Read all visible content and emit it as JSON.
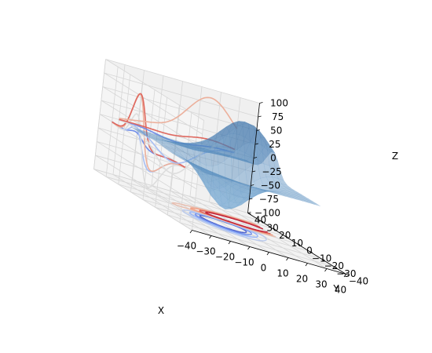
{
  "chart_data": {
    "type": "surface3d",
    "title": "",
    "xlabel": "X",
    "ylabel": "Y",
    "zlabel": "Z",
    "xlim": [
      -40,
      40
    ],
    "ylim": [
      -40,
      40
    ],
    "zlim": [
      -100,
      100
    ],
    "xticks": [
      "−40",
      "−30",
      "−20",
      "−10",
      "0",
      "10",
      "20",
      "30",
      "40"
    ],
    "yticks": [
      "−40",
      "−30",
      "−20",
      "−10",
      "0",
      "10",
      "20",
      "30",
      "40"
    ],
    "zticks": [
      "−100",
      "−75",
      "−50",
      "−25",
      "0",
      "25",
      "50",
      "75",
      "100"
    ],
    "surface": {
      "function": "axes3d test data (two Gaussian bumps: peak near x=-10,y=-10 and trough near x=10,y=15)",
      "grid_min": -30,
      "grid_max": 30,
      "grid_step": 3,
      "color": "#5b8fbf",
      "alpha": 0.45
    },
    "projections": [
      {
        "name": "contours on z = -100 plane (zdir=z)",
        "offset": -100
      },
      {
        "name": "contours on x = -40 plane (zdir=x)",
        "offset": -40
      },
      {
        "name": "contours on y = 40 plane (zdir=y)",
        "offset": 40
      }
    ],
    "colormap": "coolwarm",
    "grid": true
  }
}
